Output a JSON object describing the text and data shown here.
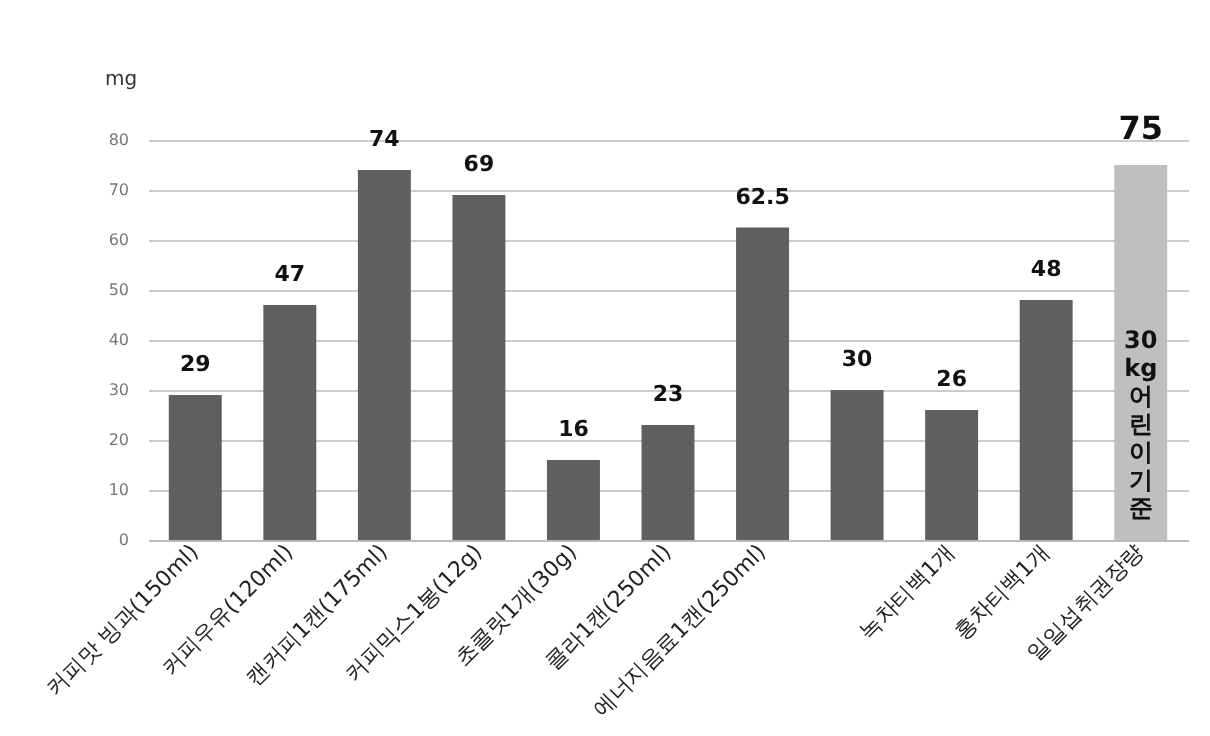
{
  "chart_data": {
    "type": "bar",
    "ylabel": "mg",
    "categories": [
      "커피맛 빙과(150ml)",
      "커피우유(120ml)",
      "캔커피1캔(175ml)",
      "커피믹스1봉(12g)",
      "초콜릿1개(30g)",
      "콜라1캔(250ml)",
      "에너지음료1캔(250ml)",
      null,
      "녹차티백1개",
      "홍차티백1개",
      "일일섭취권장량"
    ],
    "values": [
      29,
      47,
      74,
      69,
      16,
      23,
      62.5,
      30,
      26,
      48,
      75
    ],
    "colors": [
      "#5f5f5f",
      "#5f5f5f",
      "#5f5f5f",
      "#5f5f5f",
      "#5f5f5f",
      "#5f5f5f",
      "#5f5f5f",
      "#5f5f5f",
      "#5f5f5f",
      "#5f5f5f",
      "#bfbfbf"
    ],
    "ylim": [
      0,
      80
    ],
    "yticks": [
      0,
      10,
      20,
      30,
      40,
      50,
      60,
      70,
      80
    ],
    "grid": "y",
    "data_labels": true,
    "annotations": [
      "30 kg 어린이기준"
    ]
  }
}
